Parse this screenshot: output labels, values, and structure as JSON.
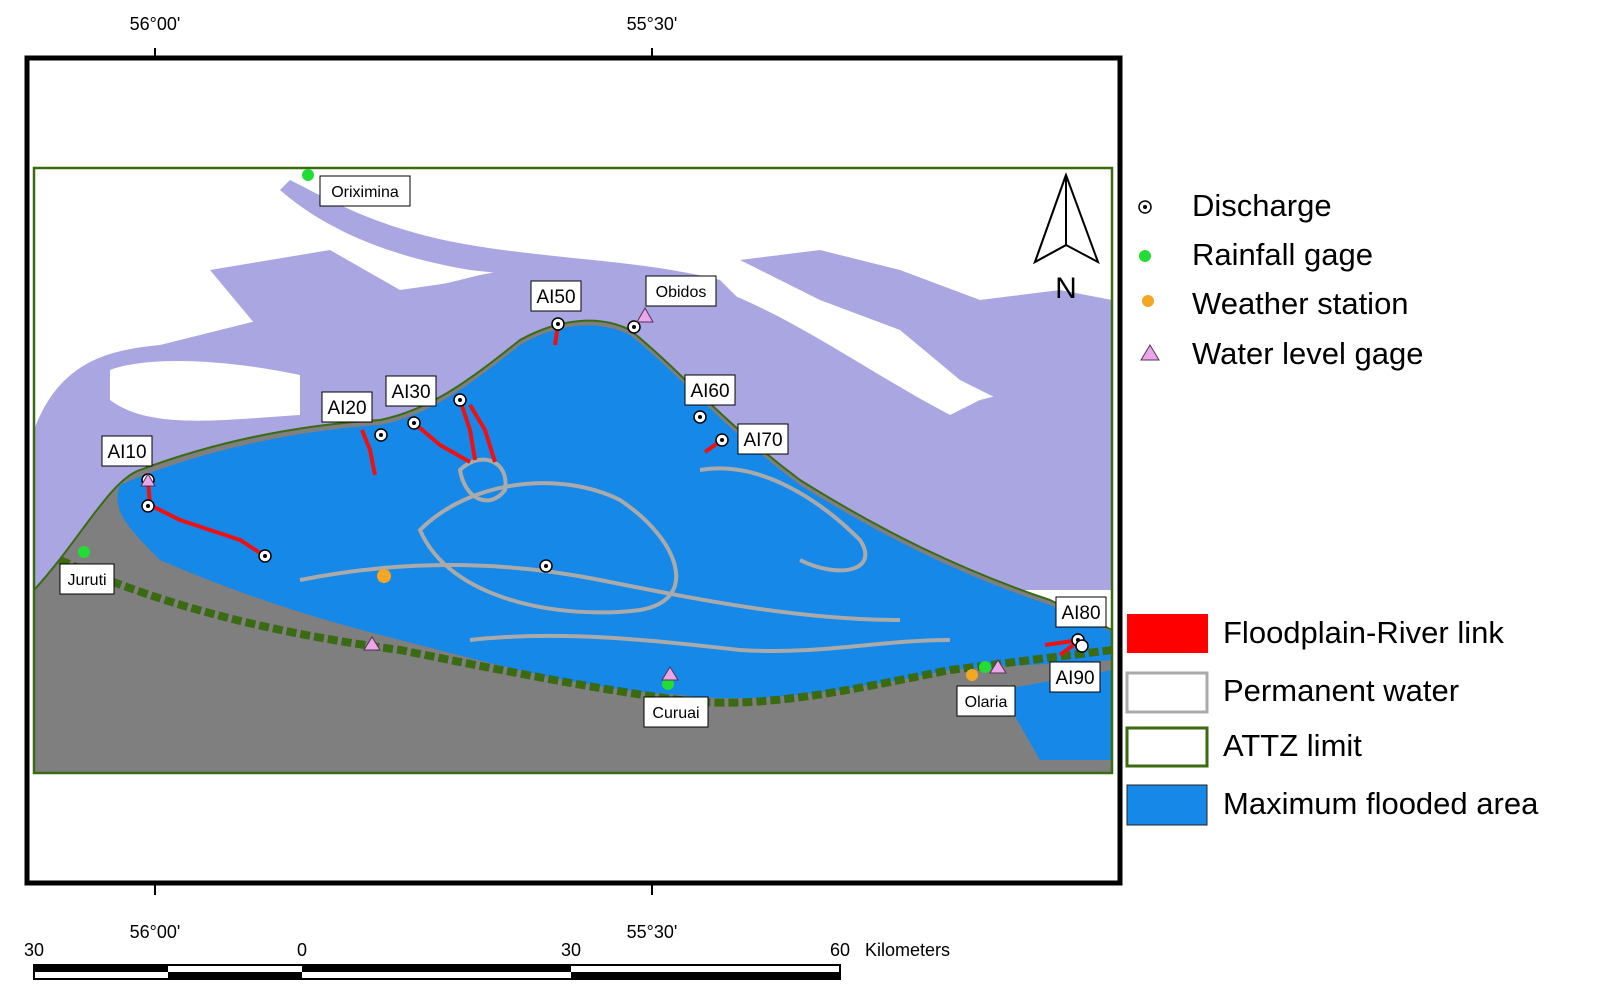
{
  "graticule": {
    "top": [
      "56°00'",
      "55°30'"
    ],
    "bottom": [
      "56°00'",
      "55°30'"
    ]
  },
  "north_arrow": {
    "label": "N"
  },
  "places": [
    {
      "name": "Oriximina",
      "type": "rainfall"
    },
    {
      "name": "Obidos",
      "type": "water-level"
    },
    {
      "name": "Juruti",
      "type": "rainfall"
    },
    {
      "name": "Curuai",
      "type": "rainfall"
    },
    {
      "name": "Olaria",
      "type": "weather"
    }
  ],
  "links": [
    "AI10",
    "AI20",
    "AI30",
    "AI50",
    "AI60",
    "AI70",
    "AI80",
    "AI90"
  ],
  "legend_points": [
    {
      "label": "Discharge",
      "symbol": "circle-dot"
    },
    {
      "label": "Rainfall gage",
      "symbol": "green-dot"
    },
    {
      "label": "Weather station",
      "symbol": "orange-dot"
    },
    {
      "label": "Water level gage",
      "symbol": "pink-triangle"
    }
  ],
  "legend_areas": [
    {
      "label": "Floodplain-River link",
      "color": "#ff0000"
    },
    {
      "label": "Permanent water",
      "color": "#ffffff",
      "border": "#aaaaaa"
    },
    {
      "label": "ATTZ limit",
      "color": "#ffffff",
      "border": "#3a6a12"
    },
    {
      "label": "Maximum flooded area",
      "color": "#1588e8"
    }
  ],
  "scale_bar": {
    "ticks": [
      "30",
      "0",
      "30",
      "60"
    ],
    "unit": "Kilometers"
  },
  "colors": {
    "river": "#a9a6e2",
    "land": "#7f7f7f",
    "flooded": "#1588e8",
    "attz": "#3a6a12",
    "link": "#ee1111",
    "rain": "#22dd33",
    "weather": "#f5a623",
    "gage": "#e9a6e9"
  }
}
